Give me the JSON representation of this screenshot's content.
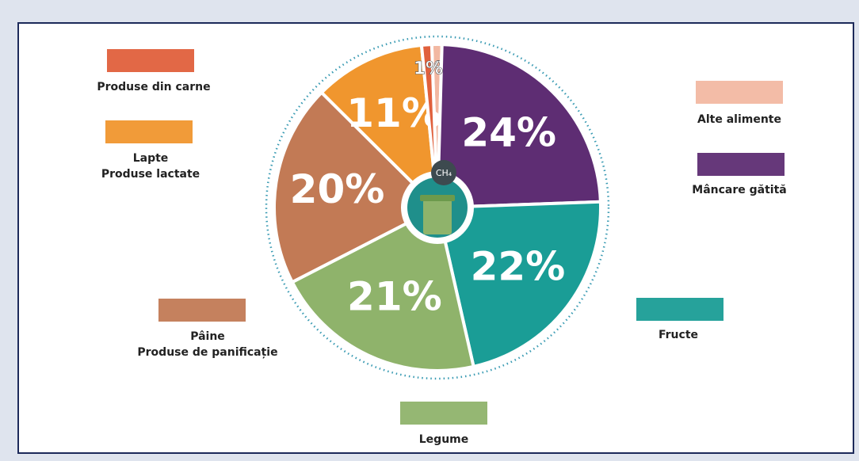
{
  "chart_data": {
    "type": "pie",
    "categories": [
      "Alte alimente",
      "Mâncare gătită",
      "Fructe",
      "Legume",
      "Pâine\nProduse de panificație",
      "Lapte\nProduse lactate",
      "Produse din carne"
    ],
    "values": [
      1,
      24,
      22,
      21,
      20,
      11,
      1
    ],
    "value_labels": [
      "1%",
      "24%",
      "22%",
      "21%",
      "20%",
      "11%",
      "1%"
    ],
    "colors": [
      "#f2b8a2",
      "#5e2d73",
      "#1a9d96",
      "#8fb36b",
      "#c27a55",
      "#f0962e",
      "#e0603c"
    ],
    "center_label": "CH₄"
  }
}
